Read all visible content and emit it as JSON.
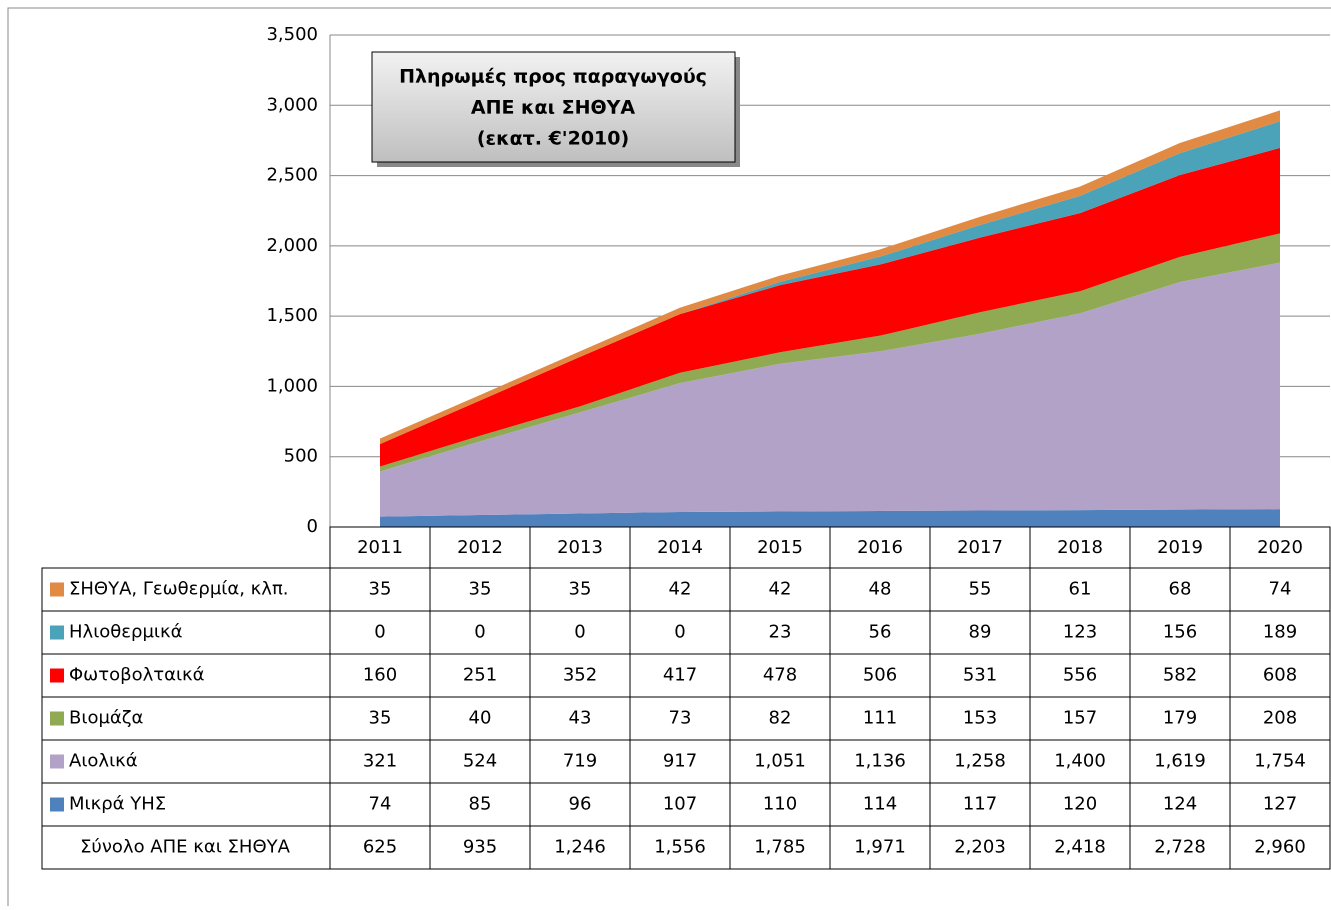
{
  "chart_data": {
    "type": "stacked_area",
    "title_lines": [
      "Πληρωμές προς παραγωγούς",
      "ΑΠΕ και ΣΗΘΥΑ",
      "(εκατ. €'2010)"
    ],
    "categories": [
      "2011",
      "2012",
      "2013",
      "2014",
      "2015",
      "2016",
      "2017",
      "2018",
      "2019",
      "2020"
    ],
    "series": [
      {
        "name": "Μικρά ΥΗΣ",
        "color": "#4f81bd",
        "values": [
          74,
          85,
          96,
          107,
          110,
          114,
          117,
          120,
          124,
          127
        ]
      },
      {
        "name": "Αιολικά",
        "color": "#b3a2c7",
        "values": [
          321,
          524,
          719,
          917,
          1051,
          1136,
          1258,
          1400,
          1619,
          1754
        ],
        "value_labels": [
          "321",
          "524",
          "719",
          "917",
          "1,051",
          "1,136",
          "1,258",
          "1,400",
          "1,619",
          "1,754"
        ]
      },
      {
        "name": "Βιομάζα",
        "color": "#8faa52",
        "values": [
          35,
          40,
          43,
          73,
          82,
          111,
          153,
          157,
          179,
          208
        ]
      },
      {
        "name": "Φωτοβολταικά",
        "color": "#ff0000",
        "values": [
          160,
          251,
          352,
          417,
          478,
          506,
          531,
          556,
          582,
          608
        ]
      },
      {
        "name": "Ηλιοθερμικά",
        "color": "#4aa3b8",
        "values": [
          0,
          0,
          0,
          0,
          23,
          56,
          89,
          123,
          156,
          189
        ]
      },
      {
        "name": "ΣΗΘΥΑ, Γεωθερμία,  κλπ.",
        "color": "#e08a44",
        "values": [
          35,
          35,
          35,
          42,
          42,
          48,
          55,
          61,
          68,
          74
        ]
      }
    ],
    "totals": {
      "name": "Σύνολο ΑΠΕ και ΣΗΘΥΑ",
      "values": [
        625,
        935,
        1246,
        1556,
        1785,
        1971,
        2203,
        2418,
        2728,
        2960
      ],
      "value_labels": [
        "625",
        "935",
        "1,246",
        "1,556",
        "1,785",
        "1,971",
        "2,203",
        "2,418",
        "2,728",
        "2,960"
      ]
    },
    "ylim": [
      0,
      3500
    ],
    "yticks": [
      0,
      500,
      {
        "value": 1000,
        "label": "1,000"
      },
      {
        "value": 1500,
        "label": "1,500"
      },
      {
        "value": 2000,
        "label": "2,000"
      },
      {
        "value": 2500,
        "label": "2,500"
      },
      {
        "value": 3000,
        "label": "3,000"
      },
      {
        "value": 3500,
        "label": "3,500"
      }
    ],
    "grid": true
  }
}
